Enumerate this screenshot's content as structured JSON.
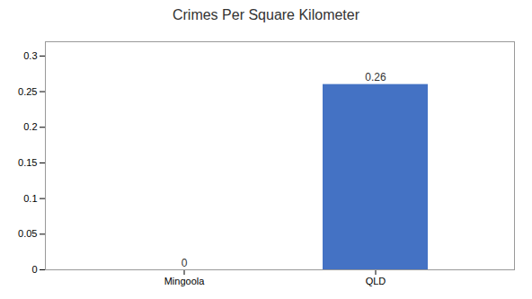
{
  "chart_data": {
    "type": "bar",
    "title": "Crimes Per Square Kilometer",
    "categories": [
      "Mingoola",
      "QLD"
    ],
    "values": [
      0,
      0.26
    ],
    "color": "#4472c4",
    "ylim": [
      0,
      0.32
    ],
    "yticks": [
      0,
      0.05,
      0.1,
      0.15,
      0.2,
      0.25,
      0.3
    ],
    "data_labels": true,
    "grid": false
  }
}
